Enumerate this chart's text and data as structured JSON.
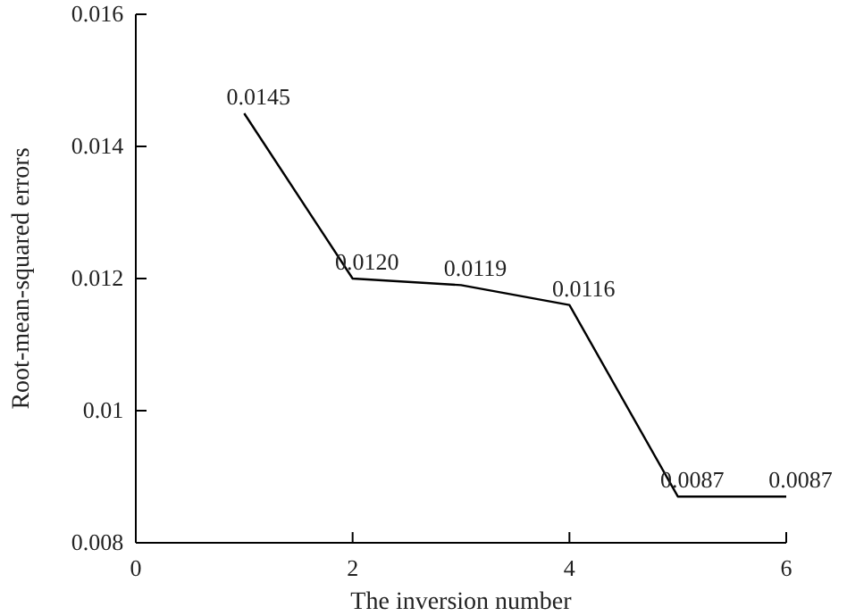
{
  "chart_data": {
    "type": "line",
    "xlabel": "The inversion number",
    "ylabel": "Root-mean-squared errors",
    "x": [
      1,
      2,
      3,
      4,
      5,
      6
    ],
    "series": [
      {
        "color": "#000000",
        "values": [
          0.0145,
          0.012,
          0.0119,
          0.0116,
          0.0087,
          0.0087
        ],
        "value_labels": [
          "0.0145",
          "0.0120",
          "0.0119",
          "0.0116",
          "0.0087",
          "0.0087"
        ]
      }
    ],
    "xlim": [
      0,
      6
    ],
    "xticks": [
      0,
      2,
      4,
      6
    ],
    "ylim": [
      0.008,
      0.016
    ],
    "yticks": [
      0.008,
      0.01,
      0.012,
      0.014,
      0.016
    ],
    "grid": false,
    "marker": "none",
    "line_style": "solid"
  }
}
